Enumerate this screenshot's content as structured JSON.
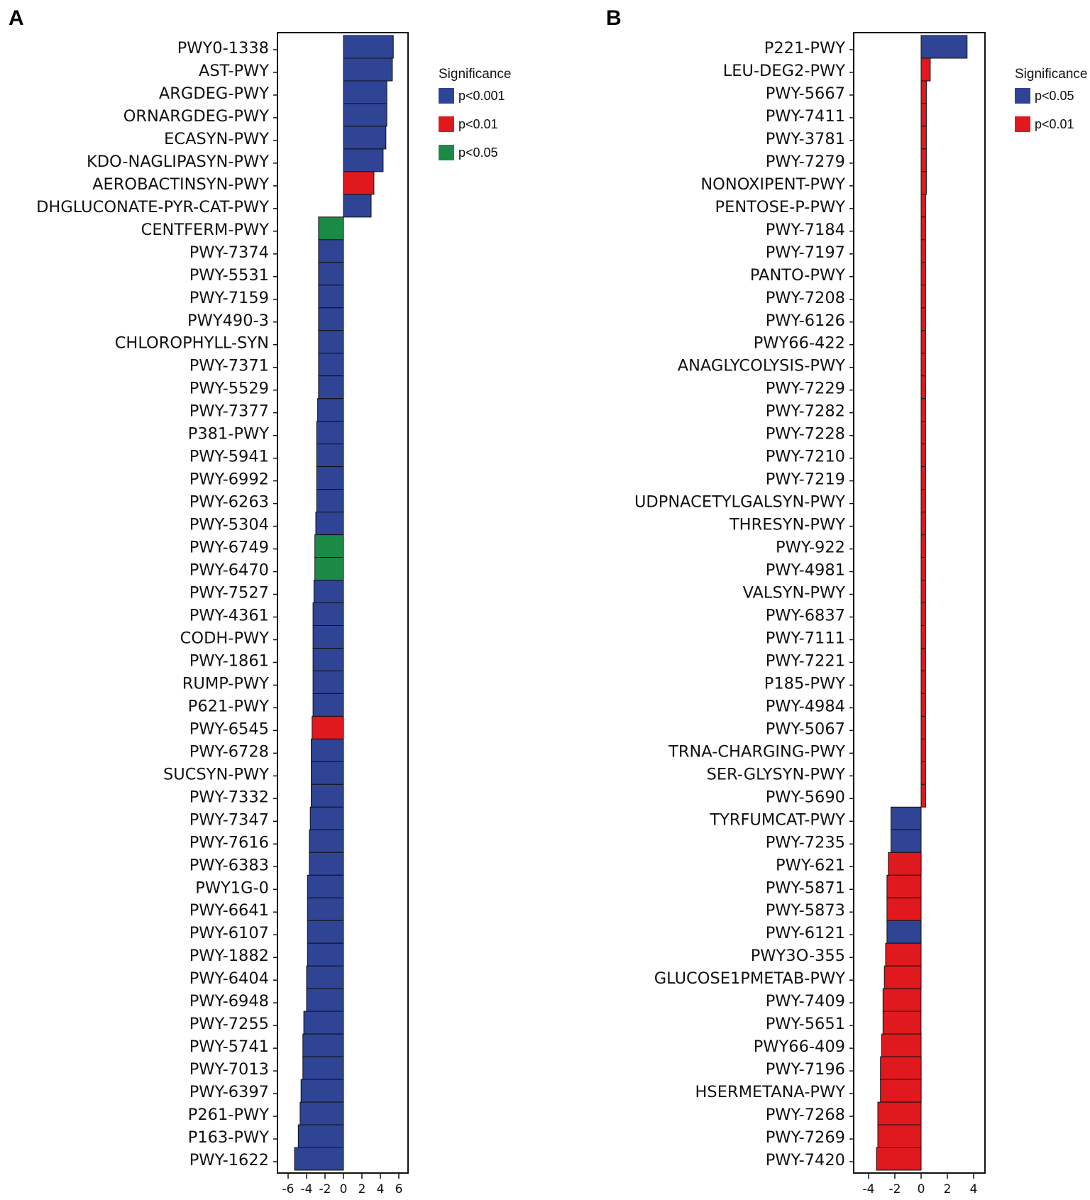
{
  "colors": {
    "p<0.001": "#2f4495",
    "p<0.01": "#e0191e",
    "p<0.05_A": "#1a8a46",
    "p<0.05_B": "#2f4495"
  },
  "chart_data": [
    {
      "panel": "A",
      "type": "bar",
      "orientation": "horizontal",
      "xlim": [
        -7,
        7
      ],
      "xticks": [
        -6,
        -4,
        -2,
        0,
        2,
        4,
        6
      ],
      "legend": {
        "title": "Significance",
        "placement": "right",
        "entries": [
          {
            "label": "p<0.001",
            "color": "#2f4495"
          },
          {
            "label": "p<0.01",
            "color": "#e0191e"
          },
          {
            "label": "p<0.05",
            "color": "#1a8a46"
          }
        ]
      },
      "categories": [
        "PWY0-1338",
        "AST-PWY",
        "ARGDEG-PWY",
        "ORNARGDEG-PWY",
        "ECASYN-PWY",
        "KDO-NAGLIPASYN-PWY",
        "AEROBACTINSYN-PWY",
        "DHGLUCONATE-PYR-CAT-PWY",
        "CENTFERM-PWY",
        "PWY-7374",
        "PWY-5531",
        "PWY-7159",
        "PWY490-3",
        "CHLOROPHYLL-SYN",
        "PWY-7371",
        "PWY-5529",
        "PWY-7377",
        "P381-PWY",
        "PWY-5941",
        "PWY-6992",
        "PWY-6263",
        "PWY-5304",
        "PWY-6749",
        "PWY-6470",
        "PWY-7527",
        "PWY-4361",
        "CODH-PWY",
        "PWY-1861",
        "RUMP-PWY",
        "P621-PWY",
        "PWY-6545",
        "PWY-6728",
        "SUCSYN-PWY",
        "PWY-7332",
        "PWY-7347",
        "PWY-7616",
        "PWY-6383",
        "PWY1G-0",
        "PWY-6641",
        "PWY-6107",
        "PWY-1882",
        "PWY-6404",
        "PWY-6948",
        "PWY-7255",
        "PWY-5741",
        "PWY-7013",
        "PWY-6397",
        "P261-PWY",
        "P163-PWY",
        "PWY-1622"
      ],
      "values": [
        5.4,
        5.3,
        4.7,
        4.7,
        4.6,
        4.3,
        3.3,
        3.0,
        -2.7,
        -2.7,
        -2.7,
        -2.7,
        -2.7,
        -2.7,
        -2.7,
        -2.7,
        -2.8,
        -2.9,
        -2.9,
        -2.9,
        -2.9,
        -3.0,
        -3.1,
        -3.1,
        -3.2,
        -3.3,
        -3.3,
        -3.3,
        -3.3,
        -3.3,
        -3.4,
        -3.5,
        -3.5,
        -3.5,
        -3.6,
        -3.7,
        -3.7,
        -3.9,
        -3.9,
        -3.9,
        -3.9,
        -4.0,
        -4.0,
        -4.3,
        -4.4,
        -4.4,
        -4.6,
        -4.7,
        -4.9,
        -5.3
      ],
      "significance": [
        "p<0.001",
        "p<0.001",
        "p<0.001",
        "p<0.001",
        "p<0.001",
        "p<0.001",
        "p<0.01",
        "p<0.001",
        "p<0.05",
        "p<0.001",
        "p<0.001",
        "p<0.001",
        "p<0.001",
        "p<0.001",
        "p<0.001",
        "p<0.001",
        "p<0.001",
        "p<0.001",
        "p<0.001",
        "p<0.001",
        "p<0.001",
        "p<0.001",
        "p<0.05",
        "p<0.05",
        "p<0.001",
        "p<0.001",
        "p<0.001",
        "p<0.001",
        "p<0.001",
        "p<0.001",
        "p<0.01",
        "p<0.001",
        "p<0.001",
        "p<0.001",
        "p<0.001",
        "p<0.001",
        "p<0.001",
        "p<0.001",
        "p<0.001",
        "p<0.001",
        "p<0.001",
        "p<0.001",
        "p<0.001",
        "p<0.001",
        "p<0.001",
        "p<0.001",
        "p<0.001",
        "p<0.001",
        "p<0.001",
        "p<0.001"
      ]
    },
    {
      "panel": "B",
      "type": "bar",
      "orientation": "horizontal",
      "xlim": [
        -5,
        5
      ],
      "xticks": [
        -4,
        -2,
        0,
        2,
        4
      ],
      "legend": {
        "title": "Significance",
        "placement": "right",
        "entries": [
          {
            "label": "p<0.05",
            "color": "#2f4495"
          },
          {
            "label": "p<0.01",
            "color": "#e0191e"
          }
        ]
      },
      "categories": [
        "P221-PWY",
        "LEU-DEG2-PWY",
        "PWY-5667",
        "PWY-7411",
        "PWY-3781",
        "PWY-7279",
        "NONOXIPENT-PWY",
        "PENTOSE-P-PWY",
        "PWY-7184",
        "PWY-7197",
        "PANTO-PWY",
        "PWY-7208",
        "PWY-6126",
        "PWY66-422",
        "ANAGLYCOLYSIS-PWY",
        "PWY-7229",
        "PWY-7282",
        "PWY-7228",
        "PWY-7210",
        "PWY-7219",
        "UDPNACETYLGALSYN-PWY",
        "THRESYN-PWY",
        "PWY-922",
        "PWY-4981",
        "VALSYN-PWY",
        "PWY-6837",
        "PWY-7111",
        "PWY-7221",
        "P185-PWY",
        "PWY-4984",
        "PWY-5067",
        "TRNA-CHARGING-PWY",
        "SER-GLYSYN-PWY",
        "PWY-5690",
        "TYRFUMCAT-PWY",
        "PWY-7235",
        "PWY-621",
        "PWY-5871",
        "PWY-5873",
        "PWY-6121",
        "PWY3O-355",
        "GLUCOSE1PMETAB-PWY",
        "PWY-7409",
        "PWY-5651",
        "PWY66-409",
        "PWY-7196",
        "HSERMETANA-PWY",
        "PWY-7268",
        "PWY-7269",
        "PWY-7420"
      ],
      "values": [
        3.5,
        0.7,
        0.4,
        0.4,
        0.4,
        0.4,
        0.4,
        0.35,
        0.35,
        0.35,
        0.35,
        0.35,
        0.35,
        0.35,
        0.35,
        0.35,
        0.35,
        0.35,
        0.35,
        0.35,
        0.35,
        0.35,
        0.35,
        0.35,
        0.35,
        0.35,
        0.35,
        0.35,
        0.35,
        0.35,
        0.35,
        0.35,
        0.35,
        0.35,
        -2.3,
        -2.3,
        -2.5,
        -2.6,
        -2.6,
        -2.6,
        -2.7,
        -2.8,
        -2.9,
        -2.9,
        -3.0,
        -3.1,
        -3.1,
        -3.3,
        -3.3,
        -3.4
      ],
      "significance": [
        "p<0.05",
        "p<0.01",
        "p<0.01",
        "p<0.01",
        "p<0.01",
        "p<0.01",
        "p<0.01",
        "p<0.01",
        "p<0.01",
        "p<0.01",
        "p<0.01",
        "p<0.01",
        "p<0.01",
        "p<0.01",
        "p<0.01",
        "p<0.01",
        "p<0.01",
        "p<0.01",
        "p<0.01",
        "p<0.01",
        "p<0.01",
        "p<0.01",
        "p<0.01",
        "p<0.01",
        "p<0.01",
        "p<0.01",
        "p<0.01",
        "p<0.01",
        "p<0.01",
        "p<0.01",
        "p<0.01",
        "p<0.01",
        "p<0.01",
        "p<0.01",
        "p<0.05",
        "p<0.05",
        "p<0.01",
        "p<0.01",
        "p<0.01",
        "p<0.05",
        "p<0.01",
        "p<0.01",
        "p<0.01",
        "p<0.01",
        "p<0.01",
        "p<0.01",
        "p<0.01",
        "p<0.01",
        "p<0.01",
        "p<0.01"
      ]
    }
  ]
}
